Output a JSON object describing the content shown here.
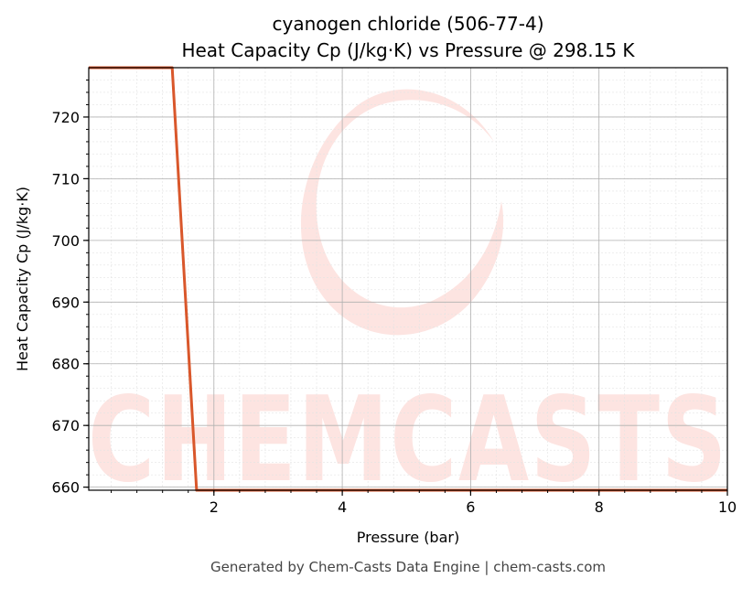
{
  "chart_data": {
    "type": "line",
    "title_line1": "cyanogen chloride (506-77-4)",
    "title_line2": "Heat Capacity Cp (J/kg·K) vs Pressure @ 298.15 K",
    "xlabel": "Pressure (bar)",
    "ylabel": "Heat Capacity Cp (J/kg·K)",
    "xlim": [
      0.05,
      10
    ],
    "ylim": [
      659.5,
      728
    ],
    "x_ticks": [
      2,
      4,
      6,
      8,
      10
    ],
    "y_ticks": [
      660,
      670,
      680,
      690,
      700,
      710,
      720
    ],
    "grid": true,
    "series": [
      {
        "color": "#d9572b",
        "x": [
          0.05,
          1.3,
          1.35,
          1.73,
          10
        ],
        "y": [
          728,
          728,
          728,
          659.5,
          659.5
        ]
      }
    ]
  },
  "watermark": {
    "text": "CHEMCASTS",
    "color": "#fde4e1"
  },
  "footer": "Generated by Chem-Casts Data Engine | chem-casts.com"
}
